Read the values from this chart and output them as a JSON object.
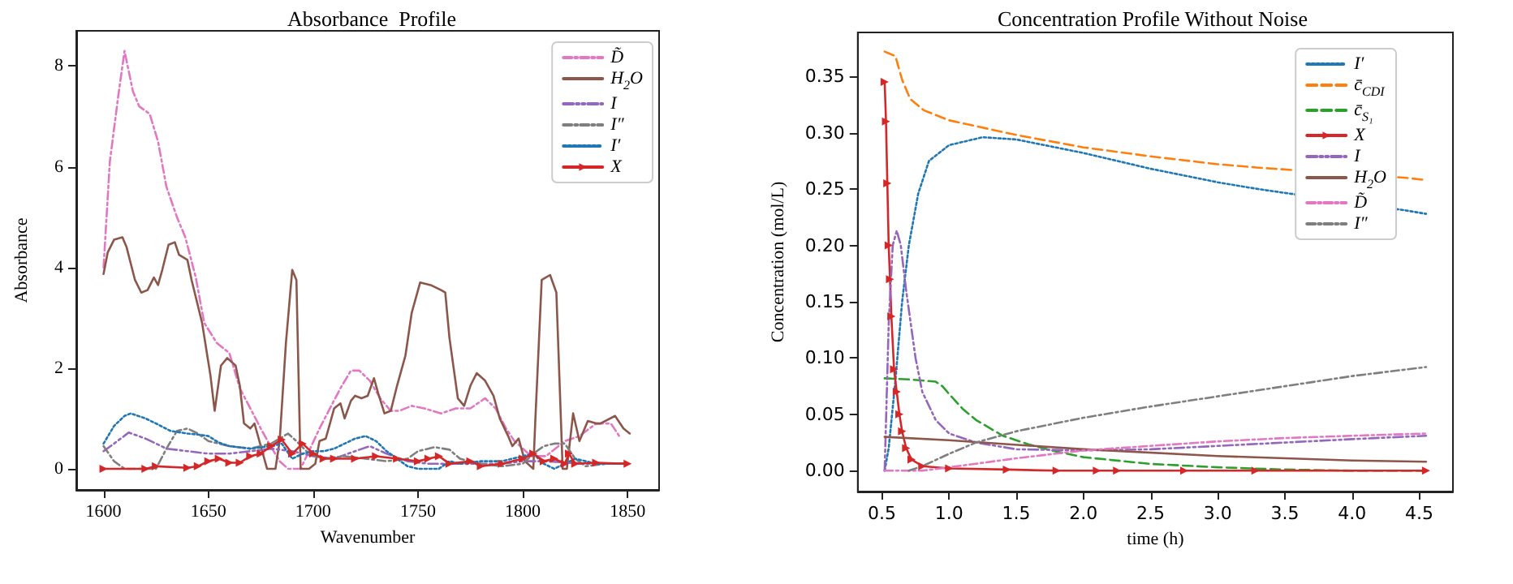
{
  "chart_data": [
    {
      "type": "line",
      "title": "Absorbance  Profile",
      "xlabel": "Wavenumber",
      "ylabel": "Absorbance",
      "xlim": [
        1587,
        1865
      ],
      "ylim": [
        -0.42,
        8.7
      ],
      "xticks": [
        1600,
        1650,
        1700,
        1750,
        1800,
        1850
      ],
      "yticks": [
        0,
        2,
        4,
        6,
        8
      ],
      "grid": false,
      "legend": "top right",
      "series": [
        {
          "name": "D̃",
          "color": "#e377c2",
          "line_style": "dashdot",
          "marker": "none",
          "x": [
            1600,
            1603,
            1607,
            1610,
            1614,
            1617,
            1622,
            1626,
            1630,
            1635,
            1639,
            1644,
            1648,
            1654,
            1660,
            1665,
            1670,
            1675,
            1679,
            1684,
            1688,
            1694,
            1698,
            1703,
            1708,
            1713,
            1718,
            1722,
            1727,
            1732,
            1737,
            1741,
            1747,
            1753,
            1761,
            1768,
            1775,
            1782,
            1787,
            1792,
            1796,
            1804,
            1811,
            1820,
            1827,
            1835,
            1842,
            1846
          ],
          "values": [
            4.0,
            6.1,
            7.4,
            8.3,
            7.5,
            7.2,
            7.05,
            6.5,
            5.6,
            5.0,
            4.6,
            3.8,
            2.9,
            2.5,
            2.3,
            1.6,
            1.2,
            0.8,
            0.5,
            0.15,
            0,
            0,
            0.35,
            0.8,
            1.2,
            1.6,
            1.95,
            1.95,
            1.75,
            1.4,
            1.15,
            1.15,
            1.25,
            1.2,
            1.1,
            1.2,
            1.2,
            1.4,
            1.2,
            0.8,
            0.55,
            0.25,
            0.25,
            0.55,
            0.65,
            0.9,
            0.9,
            0.65
          ]
        },
        {
          "name": "H$_{2}$O",
          "color": "#8c564b",
          "line_style": "solid",
          "marker": "none",
          "x": [
            1600,
            1602,
            1605,
            1609,
            1611,
            1615,
            1618,
            1621,
            1624,
            1626,
            1628,
            1631,
            1634,
            1636,
            1640,
            1642,
            1647,
            1651,
            1653,
            1656,
            1659,
            1663,
            1665,
            1667,
            1670,
            1672,
            1675,
            1678,
            1682,
            1684,
            1687,
            1690,
            1692,
            1694,
            1698,
            1701,
            1703,
            1706,
            1708,
            1710,
            1713,
            1715,
            1718,
            1720,
            1723,
            1726,
            1729,
            1731,
            1734,
            1737,
            1740,
            1744,
            1747,
            1751,
            1756,
            1761,
            1763,
            1765,
            1769,
            1772,
            1775,
            1778,
            1782,
            1786,
            1789,
            1793,
            1795,
            1798,
            1801,
            1805,
            1806,
            1809,
            1813,
            1816,
            1819,
            1821,
            1824,
            1827,
            1831,
            1835,
            1837,
            1844,
            1848,
            1851
          ],
          "values": [
            3.87,
            4.3,
            4.55,
            4.6,
            4.4,
            3.75,
            3.5,
            3.55,
            3.8,
            3.65,
            3.95,
            4.45,
            4.5,
            4.25,
            4.15,
            3.75,
            2.9,
            1.85,
            1.15,
            2.05,
            2.2,
            2.05,
            1.65,
            0.9,
            0.8,
            0.9,
            0.45,
            0,
            0,
            0.55,
            2.5,
            3.95,
            3.75,
            0,
            0,
            0.1,
            0.55,
            0.6,
            0.9,
            1.2,
            1.3,
            1.0,
            1.35,
            1.45,
            1.4,
            1.45,
            1.8,
            1.5,
            1.1,
            1.15,
            1.65,
            2.25,
            3.1,
            3.7,
            3.65,
            3.55,
            3.5,
            2.6,
            1.4,
            1.25,
            1.65,
            1.9,
            1.75,
            1.45,
            1.0,
            0.65,
            0.45,
            0.6,
            0.15,
            0,
            1.0,
            3.75,
            3.85,
            3.5,
            0,
            0,
            1.1,
            0.55,
            0.95,
            0.9,
            0.9,
            1.05,
            0.8,
            0.7
          ]
        },
        {
          "name": "I",
          "color": "#9467bd",
          "line_style": "dashdotdot",
          "marker": "none",
          "x": [
            1600,
            1605,
            1612,
            1620,
            1630,
            1640,
            1650,
            1660,
            1670,
            1680,
            1690,
            1700,
            1710,
            1720,
            1727,
            1735,
            1745,
            1755,
            1770,
            1790,
            1800,
            1810,
            1830,
            1850
          ],
          "values": [
            0.35,
            0.5,
            0.72,
            0.6,
            0.4,
            0.35,
            0.3,
            0.3,
            0.35,
            0.4,
            0.35,
            0.25,
            0.2,
            0.35,
            0.45,
            0.3,
            0.15,
            0.1,
            0.1,
            0.1,
            0.15,
            0.15,
            0.1,
            0.1
          ]
        },
        {
          "name": "I″",
          "color": "#7f7f7f",
          "line_style": "dashdot",
          "marker": "none",
          "x": [
            1600,
            1605,
            1610,
            1625,
            1630,
            1635,
            1640,
            1645,
            1650,
            1660,
            1670,
            1680,
            1688,
            1692,
            1698,
            1705,
            1715,
            1725,
            1735,
            1745,
            1750,
            1758,
            1765,
            1770,
            1780,
            1790,
            1800,
            1805,
            1810,
            1815,
            1820,
            1825,
            1830,
            1840,
            1850
          ],
          "values": [
            0.45,
            0.15,
            0,
            0,
            0.4,
            0.75,
            0.8,
            0.7,
            0.55,
            0.45,
            0.4,
            0.5,
            0.7,
            0.55,
            0.3,
            0.2,
            0.25,
            0.2,
            0.15,
            0.2,
            0.35,
            0.43,
            0.38,
            0.2,
            0.1,
            0.05,
            0.1,
            0.3,
            0.45,
            0.5,
            0.5,
            0.2,
            0.05,
            0.1,
            0.1
          ]
        },
        {
          "name": "I′",
          "color": "#1f77b4",
          "line_style": "dotted",
          "marker": "none",
          "x": [
            1600,
            1605,
            1610,
            1613,
            1620,
            1625,
            1632,
            1640,
            1645,
            1650,
            1655,
            1660,
            1670,
            1680,
            1685,
            1690,
            1695,
            1700,
            1705,
            1710,
            1715,
            1720,
            1725,
            1730,
            1735,
            1740,
            1745,
            1750,
            1760,
            1765,
            1770,
            1780,
            1790,
            1800,
            1805,
            1810,
            1815,
            1820,
            1825,
            1835,
            1850
          ],
          "values": [
            0.5,
            0.85,
            1.05,
            1.1,
            1.0,
            0.9,
            0.75,
            0.7,
            0.68,
            0.65,
            0.52,
            0.45,
            0.4,
            0.45,
            0.5,
            0.2,
            0.3,
            0.35,
            0.35,
            0.4,
            0.5,
            0.6,
            0.65,
            0.55,
            0.35,
            0.2,
            0.05,
            0,
            0,
            0.15,
            0.1,
            0.15,
            0.15,
            0.25,
            0.3,
            0.1,
            0,
            0.1,
            0.2,
            0.1,
            0.1
          ]
        },
        {
          "name": "X",
          "color": "#d62728",
          "line_style": "solid",
          "marker": "triangle",
          "x": [
            1600,
            1620,
            1625,
            1640,
            1645,
            1650,
            1655,
            1660,
            1665,
            1670,
            1675,
            1680,
            1685,
            1690,
            1695,
            1700,
            1705,
            1710,
            1720,
            1730,
            1740,
            1750,
            1755,
            1760,
            1765,
            1775,
            1780,
            1790,
            1800,
            1805,
            1810,
            1815,
            1820,
            1822,
            1825,
            1835,
            1850
          ],
          "values": [
            0,
            0,
            0.05,
            0.02,
            0.05,
            0.15,
            0.2,
            0.12,
            0.12,
            0.25,
            0.3,
            0.45,
            0.58,
            0.3,
            0.5,
            0.3,
            0.2,
            0.2,
            0.2,
            0.25,
            0.2,
            0.15,
            0.2,
            0.25,
            0.1,
            0.15,
            0.05,
            0.1,
            0.2,
            0.3,
            0.15,
            0.2,
            0.1,
            0.3,
            0.1,
            0.12,
            0.1
          ]
        }
      ]
    },
    {
      "type": "line",
      "title": "Concentration Profile Without Noise",
      "xlabel": "time (h)",
      "ylabel": "Concentration (mol/L)",
      "xlim": [
        0.32,
        4.75
      ],
      "ylim": [
        -0.0185,
        0.389
      ],
      "xticks": [
        0.5,
        {
          "value": 1,
          "label": "1.0"
        },
        1.5,
        {
          "value": 2,
          "label": "2.0"
        },
        2.5,
        {
          "value": 3,
          "label": "3.0"
        },
        3.5,
        {
          "value": 4,
          "label": "4.0"
        },
        4.5
      ],
      "yticks": [
        {
          "value": 0,
          "label": "0.00"
        },
        0.05,
        {
          "value": 0.1,
          "label": "0.10"
        },
        0.15,
        {
          "value": 0.2,
          "label": "0.20"
        },
        0.25,
        {
          "value": 0.3,
          "label": "0.30"
        },
        0.35
      ],
      "grid": false,
      "legend": "top right",
      "series": [
        {
          "name": "I′",
          "color": "#1f77b4",
          "line_style": "dotted",
          "marker": "none",
          "x": [
            0.52,
            0.55,
            0.6,
            0.65,
            0.7,
            0.77,
            0.85,
            1.0,
            1.25,
            1.5,
            2.0,
            2.5,
            3.0,
            3.3,
            4.4,
            4.55
          ],
          "values": [
            0,
            0.02,
            0.08,
            0.15,
            0.2,
            0.246,
            0.275,
            0.289,
            0.296,
            0.294,
            0.282,
            0.268,
            0.256,
            0.25,
            0.231,
            0.228
          ]
        },
        {
          "name": "c̄$_{CDI}$",
          "color": "#ff7f0e",
          "line_style": "dashed",
          "marker": "none",
          "x": [
            0.52,
            0.6,
            0.65,
            0.71,
            0.81,
            1.0,
            1.5,
            2.0,
            2.5,
            3.0,
            3.3,
            4.4,
            4.55
          ],
          "values": [
            0.372,
            0.368,
            0.347,
            0.33,
            0.32,
            0.311,
            0.298,
            0.287,
            0.279,
            0.272,
            0.269,
            0.26,
            0.258
          ]
        },
        {
          "name": "c̄$_{S₁}$",
          "color": "#2ca02c",
          "line_style": "dashed",
          "marker": "none",
          "x": [
            0.52,
            0.7,
            0.9,
            0.95,
            1.0,
            1.1,
            1.2,
            1.4,
            1.6,
            1.8,
            2.0,
            2.5,
            3.0,
            3.5,
            4.0,
            4.55
          ],
          "values": [
            0.082,
            0.081,
            0.079,
            0.075,
            0.068,
            0.055,
            0.045,
            0.031,
            0.023,
            0.017,
            0.012,
            0.006,
            0.003,
            0.001,
            0,
            0
          ]
        },
        {
          "name": "X",
          "color": "#d62728",
          "line_style": "solid",
          "marker": "triangle",
          "x": [
            0.52,
            0.53,
            0.54,
            0.55,
            0.56,
            0.57,
            0.59,
            0.61,
            0.63,
            0.65,
            0.68,
            0.72,
            0.8,
            1.0,
            1.43,
            1.8,
            2.1,
            2.25,
            2.75,
            3.28,
            4.55
          ],
          "values": [
            0.345,
            0.31,
            0.255,
            0.2,
            0.17,
            0.137,
            0.09,
            0.07,
            0.05,
            0.035,
            0.02,
            0.01,
            0.004,
            0.002,
            0.001,
            0,
            0,
            0,
            0,
            0,
            0
          ]
        },
        {
          "name": "I",
          "color": "#9467bd",
          "line_style": "dashdotdot",
          "marker": "none",
          "x": [
            0.52,
            0.55,
            0.58,
            0.61,
            0.64,
            0.68,
            0.75,
            0.8,
            0.9,
            1.0,
            1.2,
            1.5,
            2.0,
            2.5,
            3.0,
            3.5,
            4.0,
            4.55
          ],
          "values": [
            0,
            0.13,
            0.2,
            0.213,
            0.2,
            0.16,
            0.1,
            0.07,
            0.045,
            0.033,
            0.025,
            0.019,
            0.018,
            0.019,
            0.022,
            0.025,
            0.028,
            0.031
          ]
        },
        {
          "name": "H$_{2}$O",
          "color": "#8c564b",
          "line_style": "solid",
          "marker": "none",
          "x": [
            0.52,
            1.0,
            2.0,
            3.0,
            4.0,
            4.55
          ],
          "values": [
            0.03,
            0.027,
            0.019,
            0.013,
            0.009,
            0.008
          ]
        },
        {
          "name": "D̃",
          "color": "#e377c2",
          "line_style": "dashdot",
          "marker": "none",
          "x": [
            0.52,
            0.8,
            1.0,
            1.5,
            2.0,
            2.5,
            3.0,
            3.5,
            4.0,
            4.55
          ],
          "values": [
            0,
            0,
            0.003,
            0.011,
            0.018,
            0.022,
            0.026,
            0.029,
            0.031,
            0.033
          ]
        },
        {
          "name": "I″",
          "color": "#7f7f7f",
          "line_style": "dashdot",
          "marker": "none",
          "x": [
            0.7,
            0.8,
            1.0,
            1.2,
            1.5,
            2.0,
            2.5,
            3.0,
            3.5,
            4.0,
            4.55
          ],
          "values": [
            0,
            0.004,
            0.015,
            0.025,
            0.035,
            0.047,
            0.057,
            0.066,
            0.075,
            0.084,
            0.092
          ]
        }
      ]
    }
  ]
}
